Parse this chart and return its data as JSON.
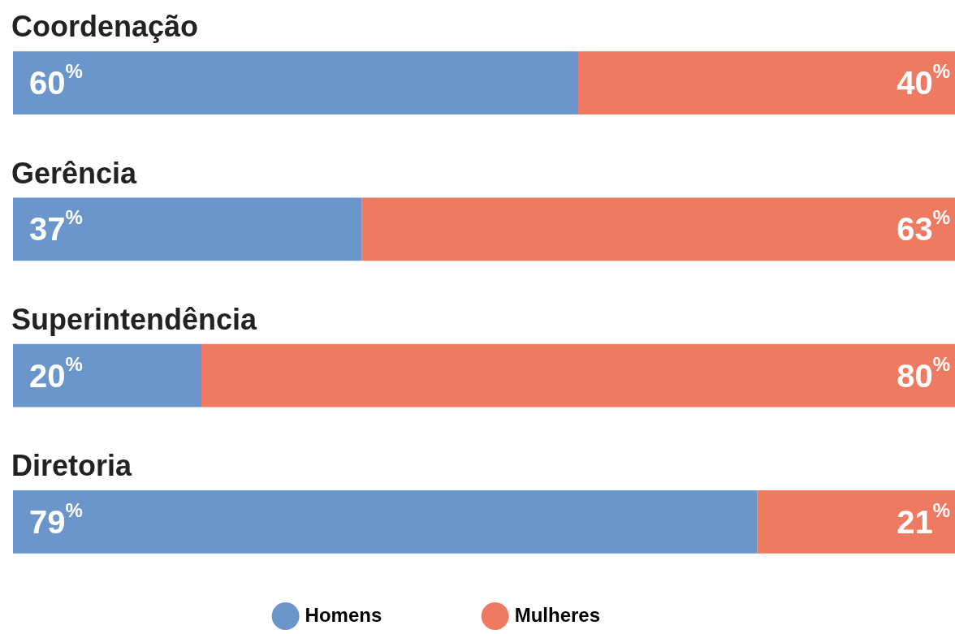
{
  "chart_data": {
    "type": "bar",
    "orientation": "horizontal",
    "stacked": true,
    "categories": [
      "Coordenação",
      "Gerência",
      "Superintendência",
      "Diretoria"
    ],
    "series": [
      {
        "name": "Homens",
        "color": "#6b96cc",
        "values": [
          60,
          37,
          20,
          79
        ],
        "value_labels": [
          "60$^{%}$",
          "37$^{%}$",
          "20$^{%}$",
          "79$^{%}$"
        ]
      },
      {
        "name": "Mulheres",
        "color": "#ef7a62",
        "values": [
          40,
          63,
          80,
          21
        ],
        "value_labels": [
          "40$^{%}$",
          "63$^{%}$",
          "80$^{%}$",
          "21$^{%}$"
        ]
      }
    ],
    "xlim": [
      0,
      100
    ],
    "legend": "bottom"
  }
}
